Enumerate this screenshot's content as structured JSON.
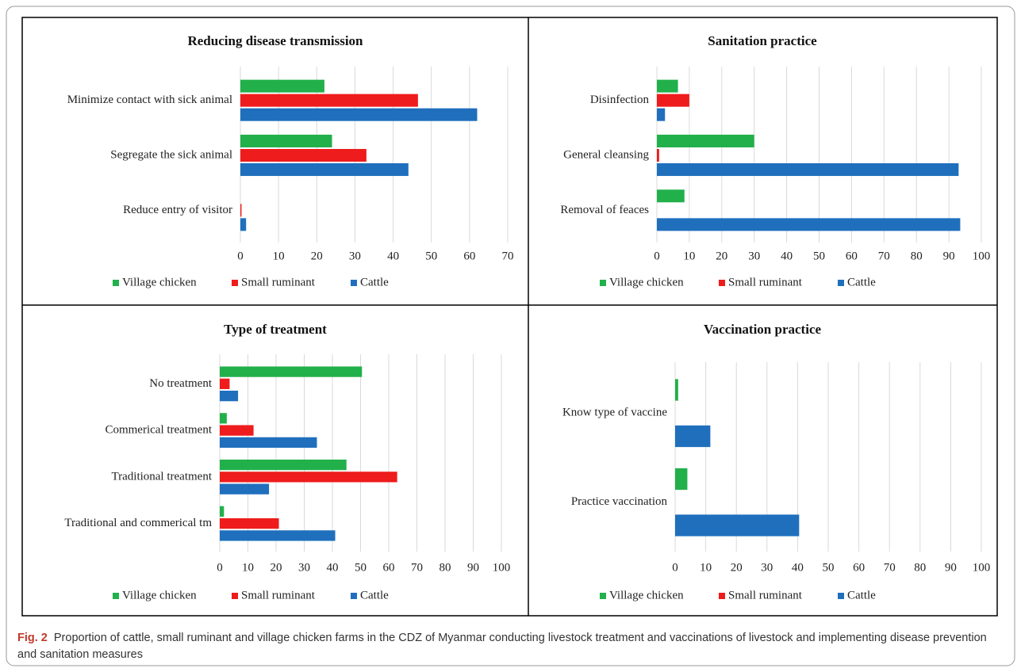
{
  "chart_data": [
    {
      "type": "bar",
      "orientation": "horizontal",
      "title": "Reducing disease transmission",
      "categories": [
        "Minimize contact with sick animal",
        "Segregate the sick animal",
        "Reduce entry of visitor"
      ],
      "series": [
        {
          "name": "Village chicken",
          "color": "#22b04b",
          "values": [
            22,
            24,
            0
          ]
        },
        {
          "name": "Small ruminant",
          "color": "#ee1c1c",
          "values": [
            46.5,
            33,
            0.3
          ]
        },
        {
          "name": "Cattle",
          "color": "#1f6fbd",
          "values": [
            62,
            44,
            1.5
          ]
        }
      ],
      "xlim": [
        0,
        70
      ],
      "xticks": [
        0,
        10,
        20,
        30,
        40,
        50,
        60,
        70
      ],
      "grid": true,
      "legend": "bottom"
    },
    {
      "type": "bar",
      "orientation": "horizontal",
      "title": "Sanitation practice",
      "categories": [
        "Disinfection",
        "General cleansing",
        "Removal of feaces"
      ],
      "series": [
        {
          "name": "Village chicken",
          "color": "#22b04b",
          "values": [
            6.5,
            30,
            8.5
          ]
        },
        {
          "name": "Small ruminant",
          "color": "#ee1c1c",
          "values": [
            10,
            0.7,
            0
          ]
        },
        {
          "name": "Cattle",
          "color": "#1f6fbd",
          "values": [
            2.5,
            93,
            93.5
          ]
        }
      ],
      "xlim": [
        0,
        100
      ],
      "xticks": [
        0,
        10,
        20,
        30,
        40,
        50,
        60,
        70,
        80,
        90,
        100
      ],
      "grid": true,
      "legend": "bottom"
    },
    {
      "type": "bar",
      "orientation": "horizontal",
      "title": "Type of treatment",
      "categories": [
        "No treatment",
        "Commerical treatment",
        "Traditional treatment",
        "Traditional and commerical tm"
      ],
      "series": [
        {
          "name": "Village chicken",
          "color": "#22b04b",
          "values": [
            50.5,
            2.5,
            45,
            1.5
          ]
        },
        {
          "name": "Small ruminant",
          "color": "#ee1c1c",
          "values": [
            3.5,
            12,
            63,
            21
          ]
        },
        {
          "name": "Cattle",
          "color": "#1f6fbd",
          "values": [
            6.5,
            34.5,
            17.5,
            41
          ]
        }
      ],
      "xlim": [
        0,
        100
      ],
      "xticks": [
        0,
        10,
        20,
        30,
        40,
        50,
        60,
        70,
        80,
        90,
        100
      ],
      "grid": true,
      "legend": "bottom"
    },
    {
      "type": "bar",
      "orientation": "horizontal",
      "title": "Vaccination  practice",
      "categories": [
        "Know type of vaccine",
        "Practice  vaccination"
      ],
      "series": [
        {
          "name": "Village chicken",
          "color": "#22b04b",
          "values": [
            1,
            4
          ]
        },
        {
          "name": "Small ruminant",
          "color": "#ee1c1c",
          "values": [
            0,
            0
          ]
        },
        {
          "name": "Cattle",
          "color": "#1f6fbd",
          "values": [
            11.5,
            40.5
          ]
        }
      ],
      "xlim": [
        0,
        100
      ],
      "xticks": [
        0,
        10,
        20,
        30,
        40,
        50,
        60,
        70,
        80,
        90,
        100
      ],
      "grid": true,
      "legend": "bottom"
    }
  ],
  "caption": {
    "label": "Fig. 2",
    "text": "Proportion of cattle, small ruminant and village chicken farms in the CDZ of Myanmar conducting livestock treatment and vaccinations of livestock and implementing disease prevention and sanitation measures"
  }
}
